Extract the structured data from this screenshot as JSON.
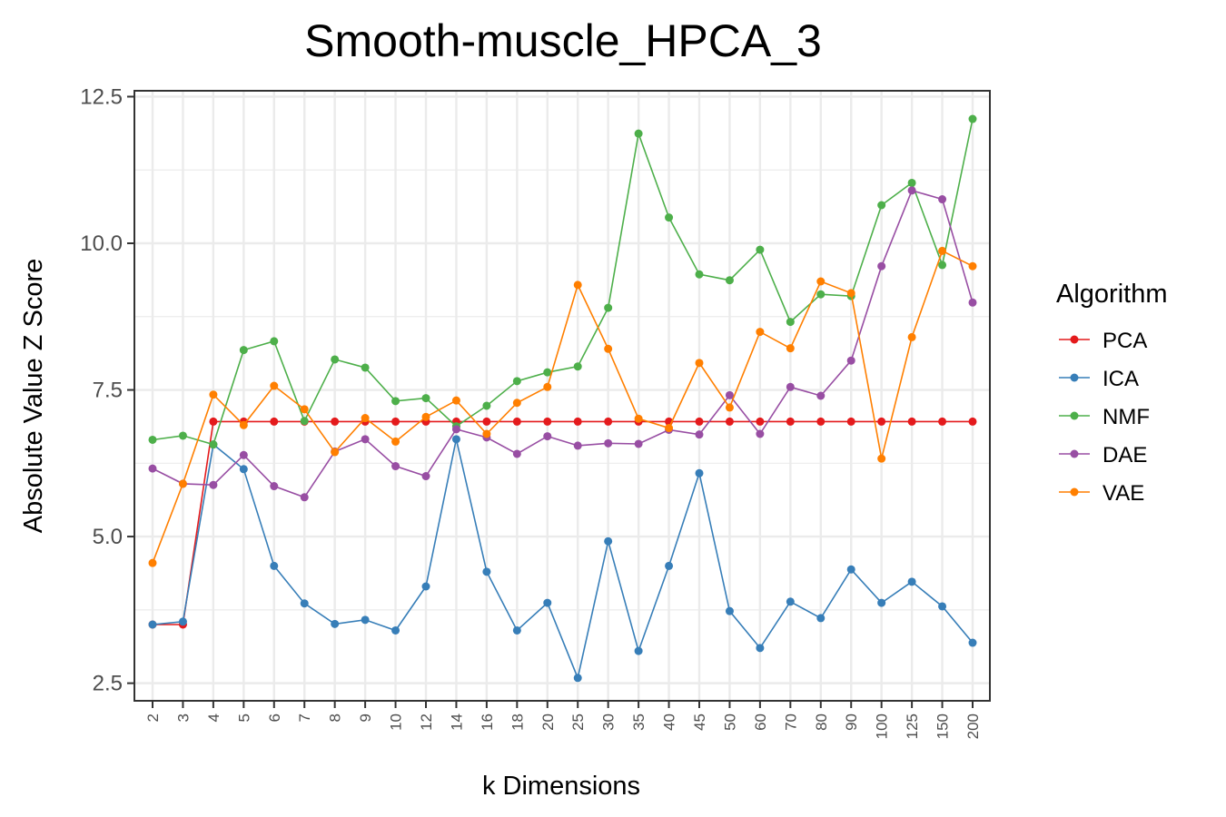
{
  "chart_data": {
    "type": "line",
    "title": "Smooth-muscle_HPCA_3",
    "xlabel": "k Dimensions",
    "ylabel": "Absolute Value Z Score",
    "categories": [
      "2",
      "3",
      "4",
      "5",
      "6",
      "7",
      "8",
      "9",
      "10",
      "12",
      "14",
      "16",
      "18",
      "20",
      "25",
      "30",
      "35",
      "40",
      "45",
      "50",
      "60",
      "70",
      "80",
      "90",
      "100",
      "125",
      "150",
      "200"
    ],
    "yticks": [
      "2.5",
      "5.0",
      "7.5",
      "10.0",
      "12.5"
    ],
    "ytick_values": [
      2.5,
      5.0,
      7.5,
      10.0,
      12.5
    ],
    "ylim": [
      2.2,
      12.6
    ],
    "grid": true,
    "legend": {
      "title": "Algorithm",
      "placement": "right"
    },
    "series": [
      {
        "name": "PCA",
        "color": "#e41a1c",
        "values": [
          3.5,
          3.5,
          6.96,
          6.96,
          6.96,
          6.96,
          6.96,
          6.96,
          6.96,
          6.96,
          6.96,
          6.96,
          6.96,
          6.96,
          6.96,
          6.96,
          6.96,
          6.96,
          6.96,
          6.96,
          6.96,
          6.96,
          6.96,
          6.96,
          6.96,
          6.96,
          6.96,
          6.96
        ]
      },
      {
        "name": "ICA",
        "color": "#377eb8",
        "values": [
          3.5,
          3.55,
          6.57,
          6.15,
          4.5,
          3.86,
          3.51,
          3.58,
          3.4,
          4.15,
          6.66,
          4.4,
          3.4,
          3.87,
          2.59,
          4.92,
          3.05,
          4.5,
          6.08,
          3.73,
          3.1,
          3.89,
          3.61,
          4.44,
          3.87,
          4.23,
          3.81,
          3.19
        ]
      },
      {
        "name": "NMF",
        "color": "#4daf4a",
        "values": [
          6.65,
          6.72,
          6.57,
          8.18,
          8.33,
          6.97,
          8.02,
          7.88,
          7.31,
          7.36,
          6.88,
          7.23,
          7.65,
          7.8,
          7.9,
          8.9,
          11.87,
          10.44,
          9.47,
          9.37,
          9.89,
          8.66,
          9.13,
          9.1,
          10.65,
          11.03,
          9.63,
          12.12
        ]
      },
      {
        "name": "DAE",
        "color": "#984ea3",
        "values": [
          6.16,
          5.9,
          5.88,
          6.39,
          5.86,
          5.67,
          6.45,
          6.66,
          6.2,
          6.03,
          6.83,
          6.69,
          6.41,
          6.71,
          6.55,
          6.59,
          6.58,
          6.82,
          6.74,
          7.41,
          6.75,
          7.55,
          7.4,
          8.0,
          9.61,
          10.9,
          10.75,
          8.99
        ]
      },
      {
        "name": "VAE",
        "color": "#ff7f00",
        "values": [
          4.55,
          5.9,
          7.42,
          6.9,
          7.57,
          7.17,
          6.44,
          7.02,
          6.62,
          7.04,
          7.32,
          6.75,
          7.28,
          7.55,
          9.29,
          8.2,
          7.01,
          6.85,
          7.96,
          7.2,
          8.49,
          8.21,
          9.35,
          9.15,
          6.33,
          8.4,
          9.87,
          9.61
        ]
      }
    ]
  }
}
